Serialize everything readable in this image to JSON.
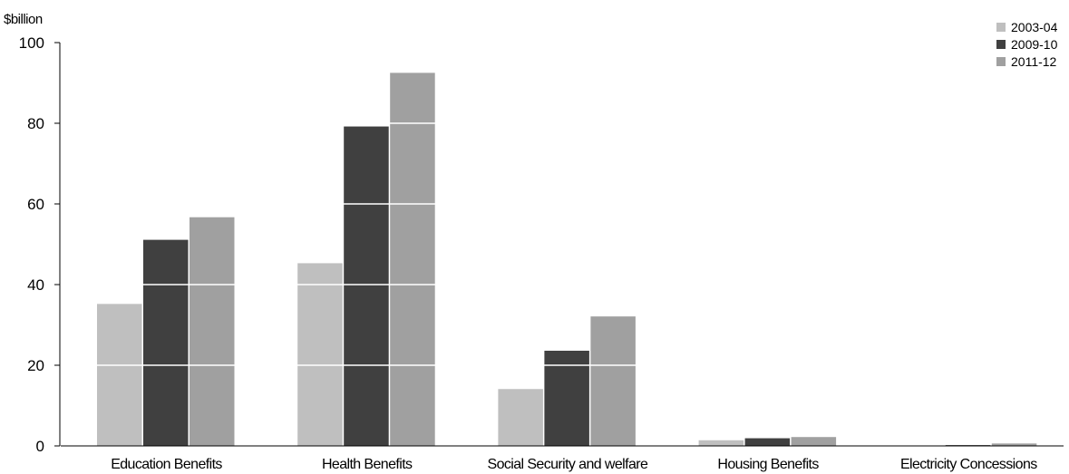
{
  "chart_data": {
    "type": "bar",
    "ylabel": "$billion",
    "xlabel": "",
    "ylim": [
      0,
      100
    ],
    "yticks": [
      0,
      20,
      40,
      60,
      80,
      100
    ],
    "grid": "white horizontal lines across bars at tick values",
    "legend_position": "top-right",
    "categories": [
      "Education Benefits",
      "Health Benefits",
      "Social Security and welfare",
      "Housing Benefits",
      "Electricity Concessions"
    ],
    "series": [
      {
        "name": "2003-04",
        "color": "#bfbfbf",
        "values": [
          35.2,
          45.3,
          14.1,
          1.4,
          0.1
        ]
      },
      {
        "name": "2009-10",
        "color": "#404040",
        "values": [
          51.1,
          79.2,
          23.6,
          1.9,
          0.2
        ]
      },
      {
        "name": "2011-12",
        "color": "#a0a0a0",
        "values": [
          56.7,
          92.5,
          32.1,
          2.2,
          0.6
        ]
      }
    ]
  }
}
